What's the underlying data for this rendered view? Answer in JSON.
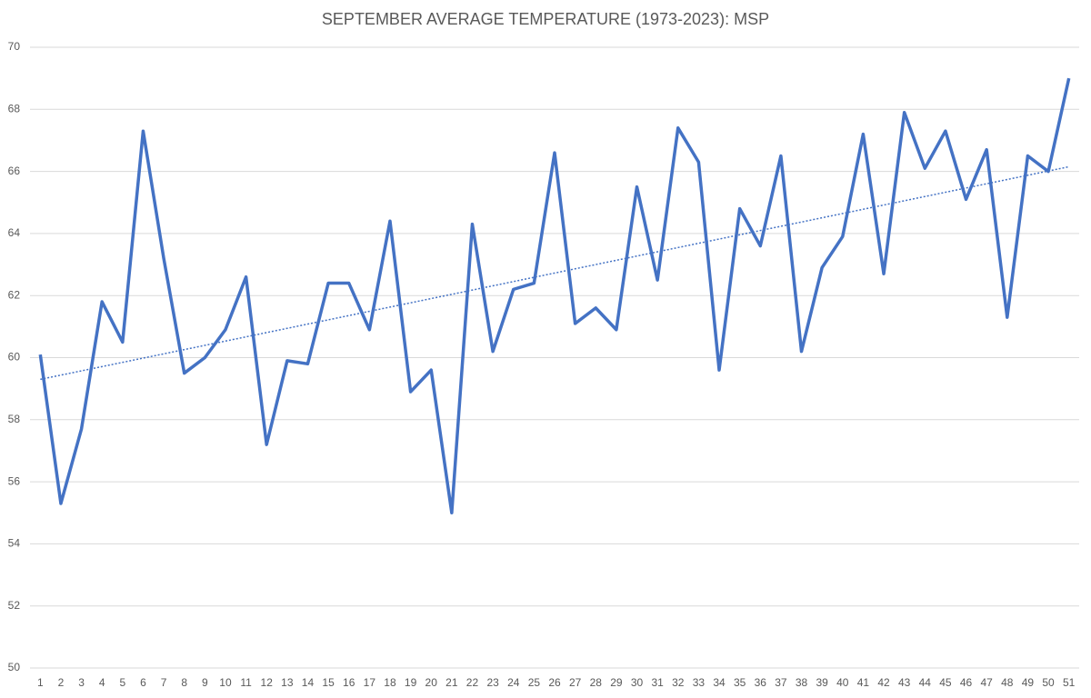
{
  "chart_data": {
    "type": "line",
    "title": "SEPTEMBER AVERAGE TEMPERATURE (1973-2023): MSP",
    "categories": [
      1,
      2,
      3,
      4,
      5,
      6,
      7,
      8,
      9,
      10,
      11,
      12,
      13,
      14,
      15,
      16,
      17,
      18,
      19,
      20,
      21,
      22,
      23,
      24,
      25,
      26,
      27,
      28,
      29,
      30,
      31,
      32,
      33,
      34,
      35,
      36,
      37,
      38,
      39,
      40,
      41,
      42,
      43,
      44,
      45,
      46,
      47,
      48,
      49,
      50,
      51
    ],
    "values": [
      60.1,
      55.3,
      57.7,
      61.8,
      60.5,
      67.3,
      63.2,
      59.5,
      60.0,
      60.9,
      62.6,
      57.2,
      59.9,
      59.8,
      62.4,
      62.4,
      60.9,
      64.4,
      58.9,
      59.6,
      55.0,
      64.3,
      60.2,
      62.2,
      62.4,
      66.6,
      61.1,
      61.6,
      60.9,
      65.5,
      62.5,
      67.4,
      66.3,
      59.6,
      64.8,
      63.6,
      66.5,
      60.2,
      62.9,
      63.9,
      67.2,
      62.7,
      67.9,
      66.1,
      67.3,
      65.1,
      66.7,
      61.3,
      66.5,
      66.0,
      69.0
    ],
    "color": "#4472c4",
    "trendline": {
      "values": [
        59.3,
        66.15
      ],
      "color": "#4472c4",
      "style": "dotted"
    },
    "ylim": [
      50,
      70
    ],
    "yticks": [
      50,
      52,
      54,
      56,
      58,
      60,
      62,
      64,
      66,
      68,
      70
    ],
    "grid": true
  }
}
